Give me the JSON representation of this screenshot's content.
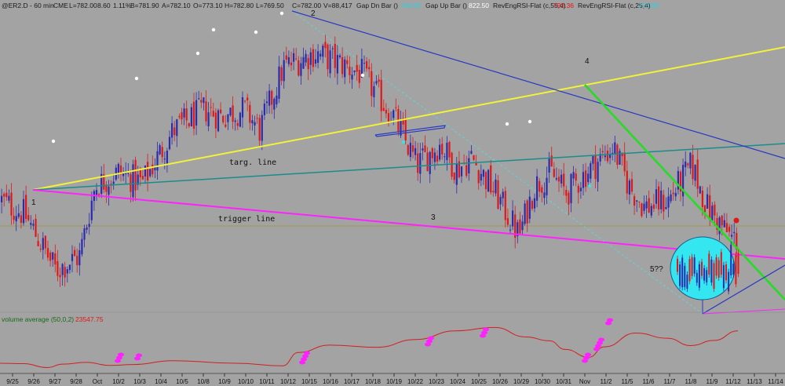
{
  "header": {
    "symbol": "@ER2.D - 60 min",
    "exchange": "CME",
    "last": "L=782.00",
    "change": "8.60",
    "change_pct": "1.11%",
    "bid": "B=781.90",
    "ask": "A=782.10",
    "open": "O=773.10",
    "high": "H=782.80",
    "low": "L=769.50",
    "close": "C=782.00",
    "volume": "V=88,417",
    "gap_dn_label": "Gap Dn Bar ()",
    "gap_dn_value": "765.80",
    "gap_up_label": "Gap Up Bar ()",
    "gap_up_value": "822.50",
    "rsi1_label": "RevEngRSI-Flat (c,55,4)",
    "rsi1_value": "792.36",
    "rsi2_label": "RevEngRSI-Flat (c,25,4)",
    "rsi2_value": "773.08"
  },
  "volume_panel": {
    "label": "volume average (50,0,2)",
    "value": "23547.75"
  },
  "annotations": {
    "targ_line": "targ. line",
    "trigger_line": "trigger line",
    "p1": "1",
    "p2": "2",
    "p3": "3",
    "p4": "4",
    "p5": "5??"
  },
  "colors": {
    "background": "#a3a3a3",
    "up_bar": "#2b2bb0",
    "down_bar": "#e01818",
    "target_line": "#f2f23a",
    "trigger_line": "#ff22ff",
    "green_line": "#22dd22",
    "blue_line": "#2838c0",
    "teal_line": "#1a8c8c",
    "cyan_circle": "#33e6f0",
    "volume_line": "#d02020",
    "volume_marker": "#ff22ff",
    "olive_hline": "#a09a50"
  },
  "chart_data": {
    "type": "candlestick",
    "x_labels": [
      "9/25",
      "9/26",
      "9/27",
      "9/28",
      "Oct",
      "10/2",
      "10/3",
      "10/4",
      "10/5",
      "10/8",
      "10/9",
      "10/10",
      "10/11",
      "10/12",
      "10/15",
      "10/16",
      "10/17",
      "10/18",
      "10/19",
      "10/22",
      "10/23",
      "10/24",
      "10/25",
      "10/26",
      "10/29",
      "10/30",
      "10/31",
      "Nov",
      "11/2",
      "11/5",
      "11/6",
      "11/7",
      "11/8",
      "11/9",
      "11/12",
      "11/13",
      "11/14"
    ],
    "price_path": [
      [
        0,
        840
      ],
      [
        3,
        830
      ],
      [
        7,
        790
      ],
      [
        10,
        800
      ],
      [
        12,
        850
      ],
      [
        15,
        860
      ],
      [
        18,
        852
      ],
      [
        22,
        890
      ],
      [
        26,
        905
      ],
      [
        28,
        900
      ],
      [
        31,
        905
      ],
      [
        33,
        890
      ],
      [
        36,
        935
      ],
      [
        40,
        945
      ],
      [
        43,
        938
      ],
      [
        46,
        930
      ],
      [
        50,
        900
      ],
      [
        53,
        865
      ],
      [
        56,
        880
      ],
      [
        58,
        862
      ],
      [
        60,
        870
      ],
      [
        63,
        845
      ],
      [
        66,
        815
      ],
      [
        68,
        850
      ],
      [
        70,
        860
      ],
      [
        72,
        845
      ],
      [
        75,
        862
      ],
      [
        78,
        878
      ],
      [
        80,
        850
      ],
      [
        82,
        835
      ],
      [
        85,
        840
      ],
      [
        88,
        865
      ],
      [
        90,
        835
      ],
      [
        93,
        813
      ],
      [
        95,
        810
      ],
      [
        98,
        800
      ],
      [
        100,
        782
      ]
    ],
    "volume_average_path": [
      [
        0,
        16000
      ],
      [
        3,
        15900
      ],
      [
        6,
        15000
      ],
      [
        8,
        15800
      ],
      [
        11,
        16200
      ],
      [
        14,
        15500
      ],
      [
        17,
        15700
      ],
      [
        22,
        16600
      ],
      [
        30,
        16000
      ],
      [
        36,
        15400
      ],
      [
        38,
        18500
      ],
      [
        42,
        20200
      ],
      [
        48,
        19700
      ],
      [
        53,
        21500
      ],
      [
        58,
        23500
      ],
      [
        63,
        24300
      ],
      [
        67,
        22100
      ],
      [
        70,
        21200
      ],
      [
        72,
        19200
      ],
      [
        75,
        17400
      ],
      [
        77,
        19800
      ],
      [
        81,
        23000
      ],
      [
        85,
        21800
      ],
      [
        88,
        20100
      ],
      [
        91,
        21300
      ],
      [
        94,
        23500
      ]
    ],
    "y_range": [
      760,
      975
    ],
    "volume_range": [
      14000,
      26000
    ]
  }
}
